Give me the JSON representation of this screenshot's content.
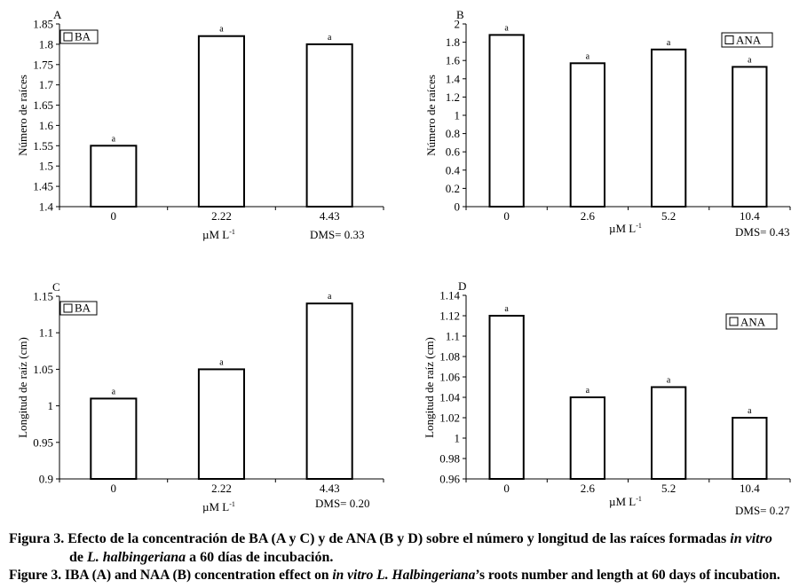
{
  "figure": {
    "captions": {
      "spanish": {
        "part1": "Figura 3. Efecto de la concentración de BA (A y C) y de ANA (B y D) sobre el número y longitud de las raíces formadas ",
        "italic1": "in vitro",
        "part2": "de ",
        "italic2": "L. halbingeriana",
        "part3": " a 60 días de incubación."
      },
      "english": {
        "part1": "Figure 3. IBA (A) and NAA (B) concentration effect on ",
        "italic1": "in vitro L. Halbingeriana",
        "part2": "’s roots number and length at 60 days of incubation."
      }
    }
  },
  "chart_data": [
    {
      "panel": "A",
      "type": "bar",
      "categories": [
        "0",
        "2.22",
        "4.43"
      ],
      "values": [
        1.55,
        1.82,
        1.8
      ],
      "significance": [
        "a",
        "a",
        "a"
      ],
      "ylabel": "Número de raíces",
      "xlabel": "µM L",
      "xlabel_superscript": "-1",
      "ylim": [
        1.4,
        1.85
      ],
      "yticks": [
        "1.4",
        "1.45",
        "1.5",
        "1.55",
        "1.6",
        "1.65",
        "1.7",
        "1.75",
        "1.8",
        "1.85"
      ],
      "legend": [
        "BA"
      ],
      "legend_position": "top-left",
      "annotation": "DMS= 0.33",
      "grid": false
    },
    {
      "panel": "B",
      "type": "bar",
      "categories": [
        "0",
        "2.6",
        "5.2",
        "10.4"
      ],
      "values": [
        1.88,
        1.57,
        1.72,
        1.53
      ],
      "significance": [
        "a",
        "a",
        "a",
        "a"
      ],
      "ylabel": "Número de raíces",
      "xlabel": "µM L",
      "xlabel_superscript": "-1",
      "ylim": [
        0,
        2
      ],
      "yticks": [
        "0",
        "0.2",
        "0.4",
        "0.6",
        "0.8",
        "1",
        "1.2",
        "1.4",
        "1.6",
        "1.8",
        "2"
      ],
      "legend": [
        "ANA"
      ],
      "legend_position": "top-right",
      "annotation": "DMS= 0.43",
      "grid": false
    },
    {
      "panel": "C",
      "type": "bar",
      "categories": [
        "0",
        "2.22",
        "4.43"
      ],
      "values": [
        1.01,
        1.05,
        1.14
      ],
      "significance": [
        "a",
        "a",
        "a"
      ],
      "ylabel": "Longitud de raíz (cm)",
      "xlabel": "µM L",
      "xlabel_superscript": "-1",
      "ylim": [
        0.9,
        1.15
      ],
      "yticks": [
        "0.9",
        "0.95",
        "1",
        "1.05",
        "1.1",
        "1.15"
      ],
      "legend": [
        "BA"
      ],
      "legend_position": "top-left",
      "annotation": "DMS= 0.20",
      "grid": false
    },
    {
      "panel": "D",
      "type": "bar",
      "categories": [
        "0",
        "2.6",
        "5.2",
        "10.4"
      ],
      "values": [
        1.12,
        1.04,
        1.05,
        1.02
      ],
      "significance": [
        "a",
        "a",
        "a",
        "a"
      ],
      "ylabel": "Longitud de raíz (cm)",
      "xlabel": "µM L",
      "xlabel_superscript": "-1",
      "ylim": [
        0.96,
        1.14
      ],
      "yticks": [
        "0.96",
        "0.98",
        "1",
        "1.02",
        "1.04",
        "1.06",
        "1.08",
        "1.1",
        "1.12",
        "1.14"
      ],
      "legend": [
        "ANA"
      ],
      "legend_position": "top-right",
      "annotation": "DMS= 0.27",
      "grid": false
    }
  ]
}
